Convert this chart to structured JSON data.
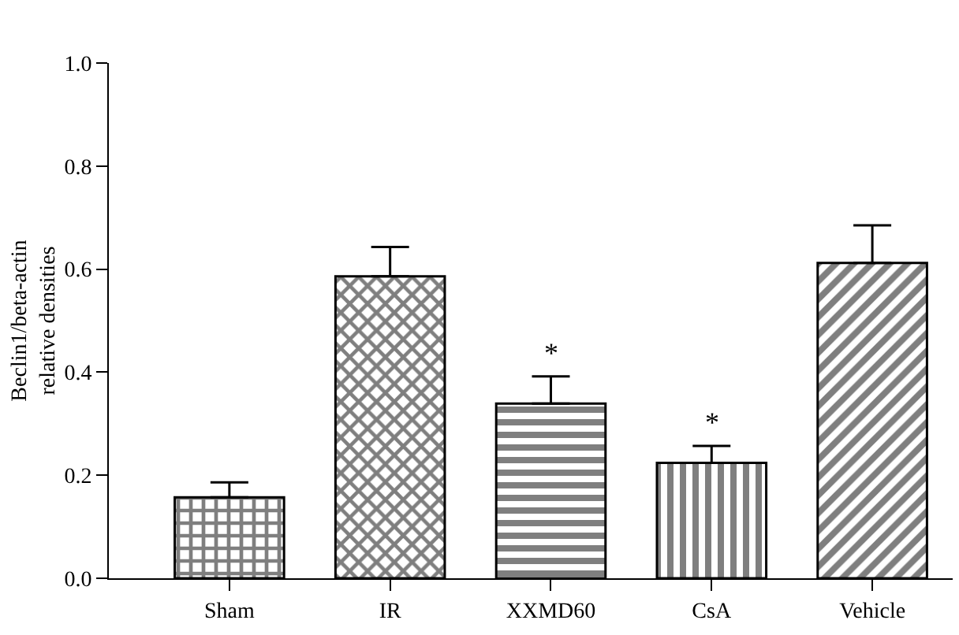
{
  "chart_data": {
    "type": "bar",
    "ylabel": "Beclin1/beta-actin\nrelative densities",
    "categories": [
      "Sham",
      "IR",
      "XXMD60",
      "CsA",
      "Vehicle"
    ],
    "values": [
      0.157,
      0.586,
      0.339,
      0.224,
      0.612
    ],
    "errors": [
      [
        0.157,
        0.186
      ],
      [
        0.586,
        0.643
      ],
      [
        0.339,
        0.392
      ],
      [
        0.224,
        0.257
      ],
      [
        0.612,
        0.685
      ]
    ],
    "color": "#000000",
    "ylim": [
      0,
      1
    ],
    "yticks": [
      {
        "value": 0,
        "label": "0.0"
      },
      {
        "value": 0.2,
        "label": "0.2"
      },
      {
        "value": 0.4,
        "label": "0.4"
      },
      {
        "value": 0.6,
        "label": "0.6"
      },
      {
        "value": 0.8,
        "label": "0.8"
      },
      {
        "value": 1,
        "label": "1.0"
      }
    ],
    "annotations": [
      {
        "text": "*",
        "x": "XXMD60",
        "y": 0.4
      },
      {
        "text": "*",
        "x": "CsA",
        "y": 0.265
      }
    ],
    "grid": false,
    "legend": false
  }
}
